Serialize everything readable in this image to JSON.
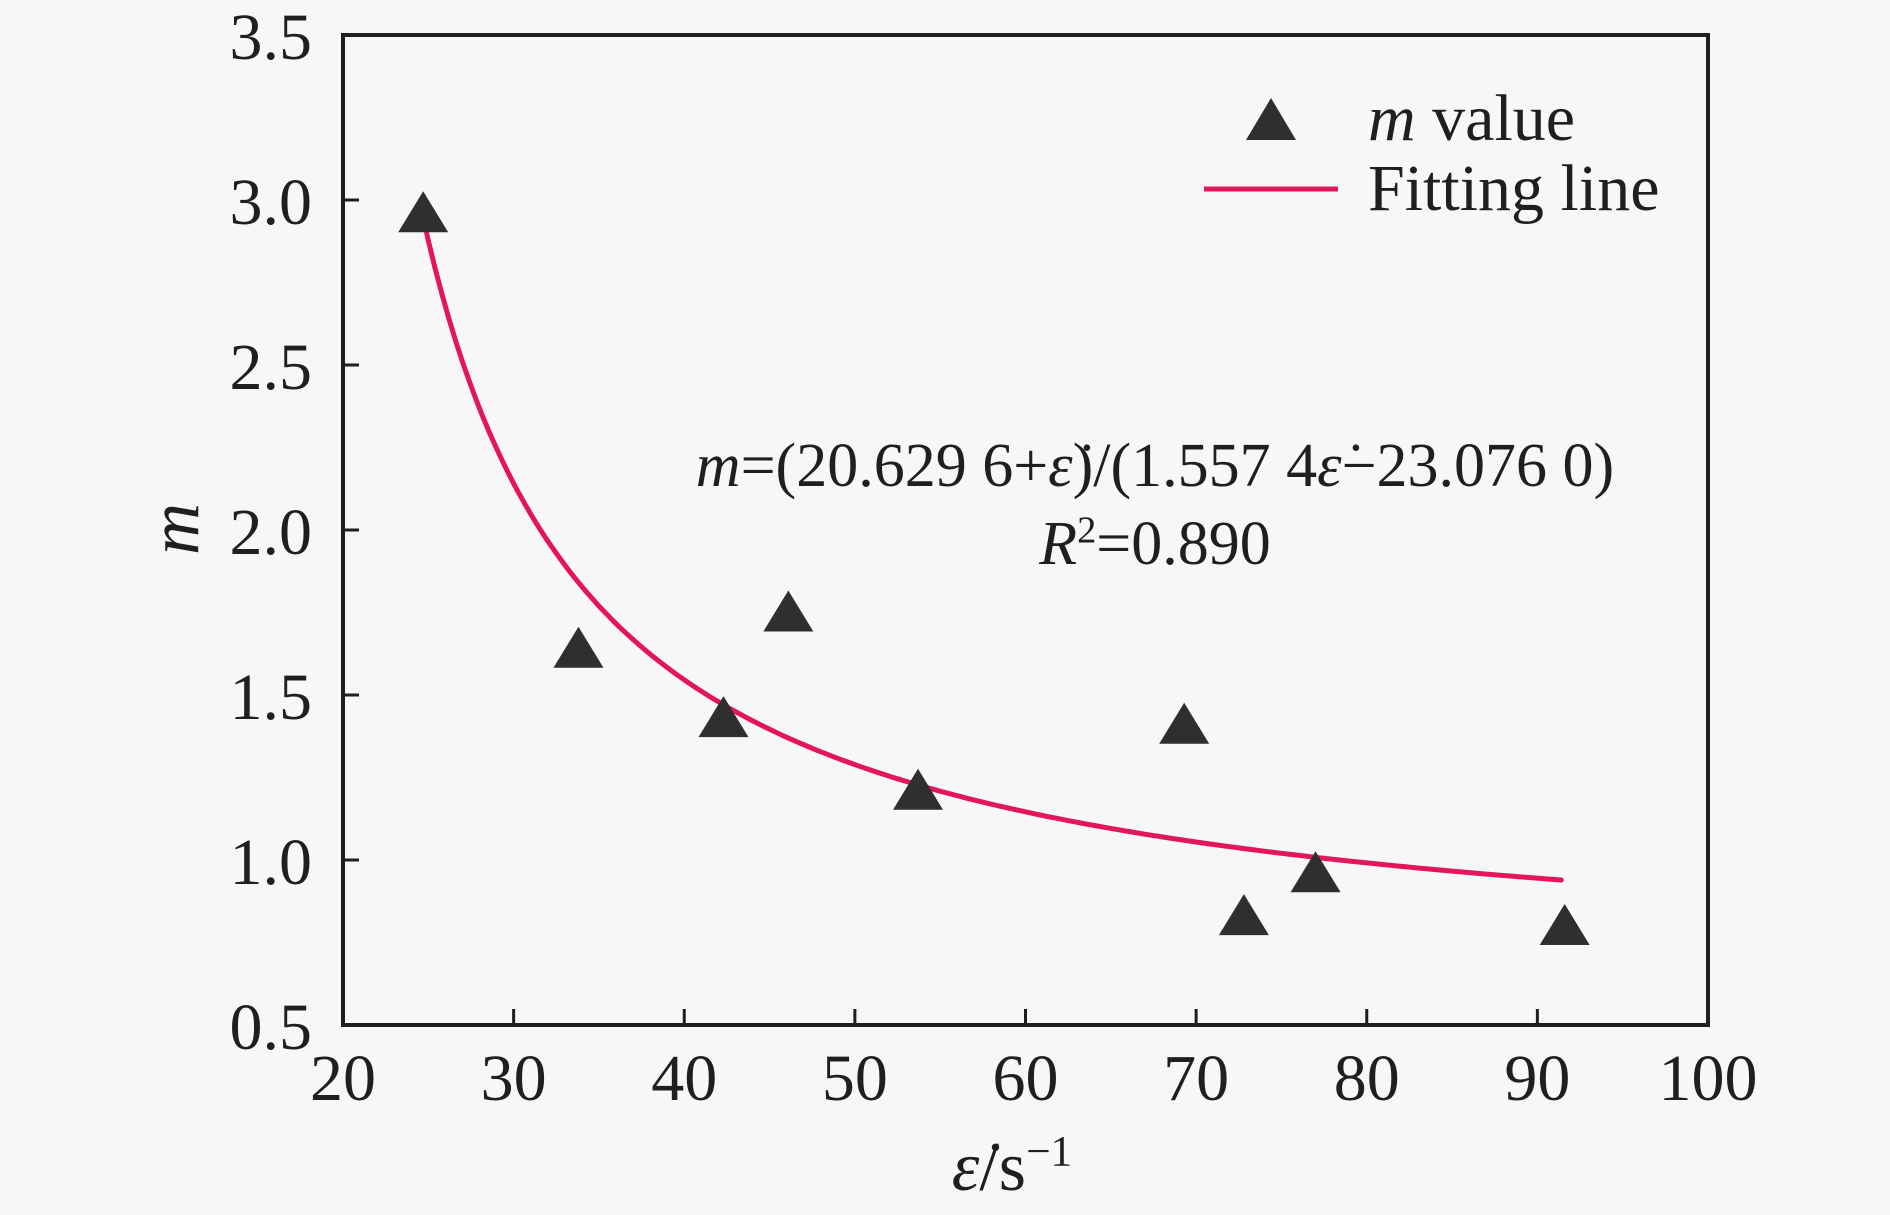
{
  "figure": {
    "background": "#f7f7f8",
    "axis_color": "#1f1f1f"
  },
  "chart_data": {
    "type": "scatter",
    "title": "",
    "xlabel_text": "ε̇/s−1",
    "ylabel_text": "m",
    "xlabel_segments": [
      {
        "t": "ε̇",
        "i": true
      },
      {
        "t": "/s"
      },
      {
        "t": "−1",
        "sup": true
      }
    ],
    "ylabel_segments": [
      {
        "t": "m",
        "i": true
      }
    ],
    "xlim": [
      20,
      100
    ],
    "ylim": [
      0.5,
      3.5
    ],
    "grid": false,
    "x_ticks": [
      {
        "v": 20,
        "label": "20"
      },
      {
        "v": 30,
        "label": "30"
      },
      {
        "v": 40,
        "label": "40"
      },
      {
        "v": 50,
        "label": "50"
      },
      {
        "v": 60,
        "label": "60"
      },
      {
        "v": 70,
        "label": "70"
      },
      {
        "v": 80,
        "label": "80"
      },
      {
        "v": 90,
        "label": "90"
      },
      {
        "v": 100,
        "label": "100"
      }
    ],
    "y_ticks": [
      {
        "v": 0.5,
        "label": "0.5"
      },
      {
        "v": 1.0,
        "label": "1.0"
      },
      {
        "v": 1.5,
        "label": "1.5"
      },
      {
        "v": 2.0,
        "label": "2.0"
      },
      {
        "v": 2.5,
        "label": "2.5"
      },
      {
        "v": 3.0,
        "label": "3.0"
      },
      {
        "v": 3.5,
        "label": "3.5"
      }
    ],
    "series": [
      {
        "name": "m value",
        "kind": "scatter",
        "marker": "triangle-up",
        "color": "#2f2f2f",
        "points": [
          [
            24.7,
            2.96
          ],
          [
            33.8,
            1.64
          ],
          [
            42.3,
            1.43
          ],
          [
            46.1,
            1.75
          ],
          [
            53.7,
            1.21
          ],
          [
            69.3,
            1.41
          ],
          [
            72.8,
            0.83
          ],
          [
            77.0,
            0.96
          ],
          [
            91.6,
            0.8
          ]
        ]
      },
      {
        "name": "Fitting line",
        "kind": "fit-line",
        "color": "#e4165b",
        "fit": {
          "formula": "m=(20.6296+x)/(1.5574x−23.0760)",
          "num_const": 20.6296,
          "den_coef": 1.5574,
          "den_const": 23.076,
          "x_start": 24.6,
          "x_end": 91.7
        }
      }
    ],
    "annotation": {
      "line1_text": "m=(20.629 6+ε̇)/(1.557 4ε̇−23.076 0)",
      "line2_text": "R2=0.890",
      "line1_segments": [
        {
          "t": "m",
          "i": true
        },
        {
          "t": "=(20.629 6+"
        },
        {
          "t": "ε̇",
          "i": true
        },
        {
          "t": ")/(1.557 4"
        },
        {
          "t": "ε̇",
          "i": true
        },
        {
          "t": "−23.076 0)"
        }
      ],
      "line2_segments": [
        {
          "t": "R",
          "i": true
        },
        {
          "t": "2",
          "sup": true
        },
        {
          "t": "=0.890"
        }
      ]
    },
    "legend": {
      "position": "upper-right",
      "frame": false,
      "items": [
        {
          "marker": "triangle",
          "label_text": "m value",
          "label_segments": [
            {
              "t": "m",
              "i": true
            },
            {
              "t": " value"
            }
          ]
        },
        {
          "marker": "line",
          "label_text": "Fitting line",
          "label_segments": [
            {
              "t": "Fitting line"
            }
          ]
        }
      ]
    }
  }
}
